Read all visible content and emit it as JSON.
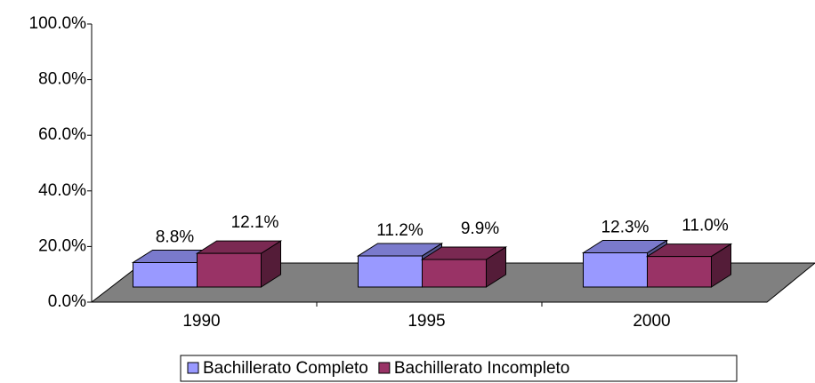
{
  "chart_data": {
    "type": "bar3d",
    "categories": [
      "1990",
      "1995",
      "2000"
    ],
    "series": [
      {
        "name": "Bachillerato Completo",
        "color": "#9999FF",
        "values": [
          8.8,
          11.2,
          12.3
        ],
        "value_labels": [
          "8.8%",
          "11.2%",
          "12.3%"
        ]
      },
      {
        "name": "Bachillerato Incompleto",
        "color": "#993366",
        "values": [
          12.1,
          9.9,
          11.0
        ],
        "value_labels": [
          "12.1%",
          "9.9%",
          "11.0%"
        ]
      }
    ],
    "ylim": [
      0,
      100
    ],
    "yticks": [
      {
        "value": 0,
        "label": "0.0%"
      },
      {
        "value": 20,
        "label": "20.0%"
      },
      {
        "value": 40,
        "label": "40.0%"
      },
      {
        "value": 60,
        "label": "60.0%"
      },
      {
        "value": 80,
        "label": "80.0%"
      },
      {
        "value": 100,
        "label": "100.0%"
      }
    ],
    "floor_color": "#808080",
    "legend": "bottom"
  }
}
